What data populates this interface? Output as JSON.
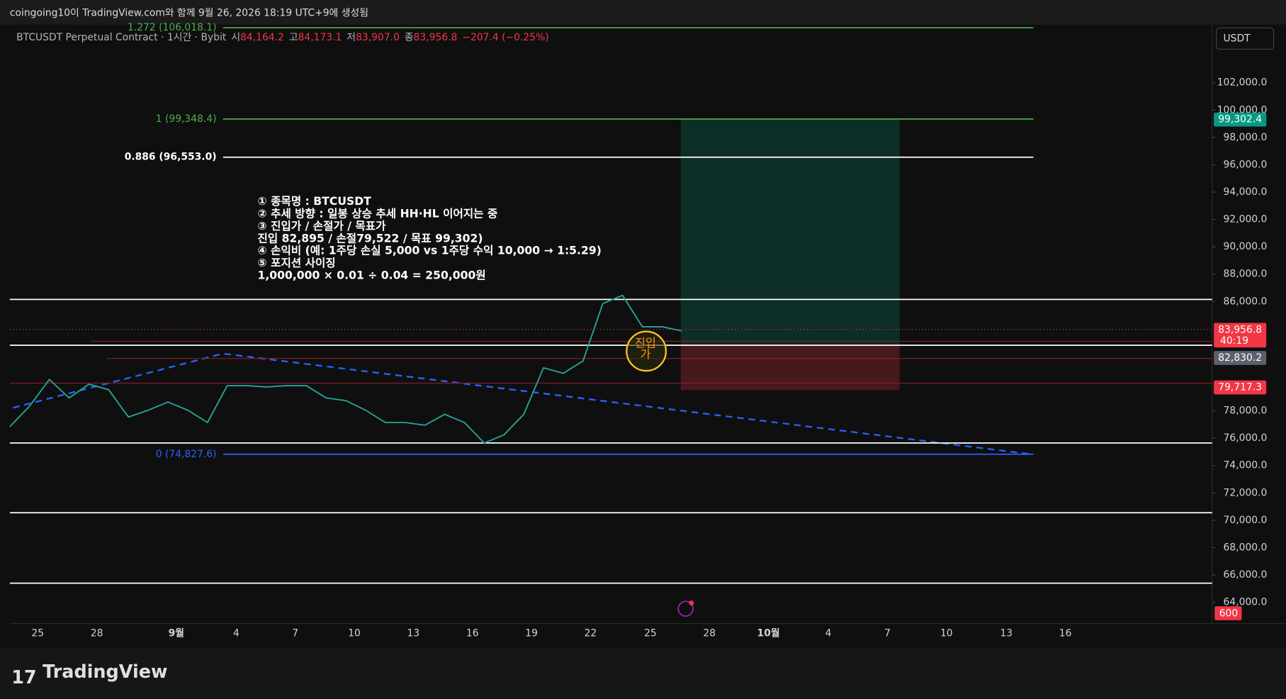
{
  "header": {
    "caption": "coingoing10이 TradingView.com와 함께 9월 26, 2026 18:19 UTC+9에 생성됨"
  },
  "symbol_bar": {
    "symbol": "BTCUSDT Perpetual Contract · 1시간 · Bybit",
    "open_label": "시",
    "open": "84,164.2",
    "high_label": "고",
    "high": "84,173.1",
    "low_label": "저",
    "low": "83,907.0",
    "close_label": "종",
    "close": "83,956.8",
    "change": "−207.4 (−0.25%)"
  },
  "currency_button": "USDT",
  "chart": {
    "ylim": [
      62450,
      106250
    ],
    "yticks": [
      {
        "value": 102000,
        "label": "102,000.0"
      },
      {
        "value": 100000,
        "label": "100,000.0"
      },
      {
        "value": 98000,
        "label": "98,000.0"
      },
      {
        "value": 96000,
        "label": "96,000.0"
      },
      {
        "value": 94000,
        "label": "94,000.0"
      },
      {
        "value": 92000,
        "label": "92,000.0"
      },
      {
        "value": 90000,
        "label": "90,000.0"
      },
      {
        "value": 88000,
        "label": "88,000.0"
      },
      {
        "value": 86000,
        "label": "86,000.0"
      },
      {
        "value": 78000,
        "label": "78,000.0"
      },
      {
        "value": 76000,
        "label": "76,000.0"
      },
      {
        "value": 74000,
        "label": "74,000.0"
      },
      {
        "value": 72000,
        "label": "72,000.0"
      },
      {
        "value": 70000,
        "label": "70,000.0"
      },
      {
        "value": 68000,
        "label": "68,000.0"
      },
      {
        "value": 66000,
        "label": "66,000.0"
      },
      {
        "value": 64000,
        "label": "64,000.0"
      }
    ],
    "x_labels": [
      "25",
      "28",
      "9월",
      "4",
      "7",
      "10",
      "13",
      "16",
      "19",
      "22",
      "25",
      "28",
      "10월",
      "4",
      "7",
      "10",
      "13",
      "16"
    ],
    "price_trace": [
      76850,
      78350,
      80300,
      78950,
      79950,
      79550,
      77550,
      78050,
      78650,
      78050,
      77150,
      79850,
      79850,
      79750,
      79850,
      79850,
      78950,
      78750,
      78050,
      77150,
      77150,
      76950,
      77750,
      77150,
      75650,
      76250,
      77750,
      81150,
      80750,
      81650,
      85850,
      86450,
      84150,
      84150,
      83850
    ],
    "fib_levels": [
      {
        "value": 106018.1,
        "label": "1.272 (106,018.1)",
        "color": "#4caf50"
      },
      {
        "value": 99348.4,
        "label": "1 (99,348.4)",
        "color": "#4caf50"
      },
      {
        "value": 96553.0,
        "label": "0.886 (96,553.0)",
        "color": "#ffffff"
      },
      {
        "value": 74827.6,
        "label": "0 (74,827.6)",
        "color": "#2962ff"
      }
    ],
    "horizontal_lines": [
      86150,
      82800,
      75650,
      70550,
      65400
    ],
    "red_lines": [
      83090,
      81830,
      80030
    ],
    "position": {
      "entry": 82895,
      "stop": 79522,
      "target": 99302
    },
    "price_tags": [
      {
        "value": 99302.4,
        "label": "99,302.4",
        "color": "#089981"
      },
      {
        "value": 83956.8,
        "label": "83,956.8",
        "sub": "40:19",
        "color": "#f23645"
      },
      {
        "value": 82830.2,
        "label": "82,830.2",
        "color": "#5d606b"
      },
      {
        "value": 79717.3,
        "label": "79,717.3",
        "color": "#f23645"
      }
    ],
    "volume_tag": "600",
    "annotation_lines": [
      "① 종목명 :  BTCUSDT",
      "② 추세 방향 : 일봉 상승 추세 HH·HL 이어지는 중",
      "③ 진입가 / 손절가 / 목표가",
      " 진입 82,895 / 손절79,522 / 목표 99,302)",
      "④ 손익비 (예: 1주당 손실 5,000 vs 1주당 수익 10,000 → 1:5.29)",
      "⑤ 포지션 사이징",
      "1,000,000 × 0.01 ÷ 0.04 = 250,000원"
    ],
    "circle_note": [
      "진입",
      "가"
    ]
  },
  "footer": {
    "brand": "TradingView"
  }
}
